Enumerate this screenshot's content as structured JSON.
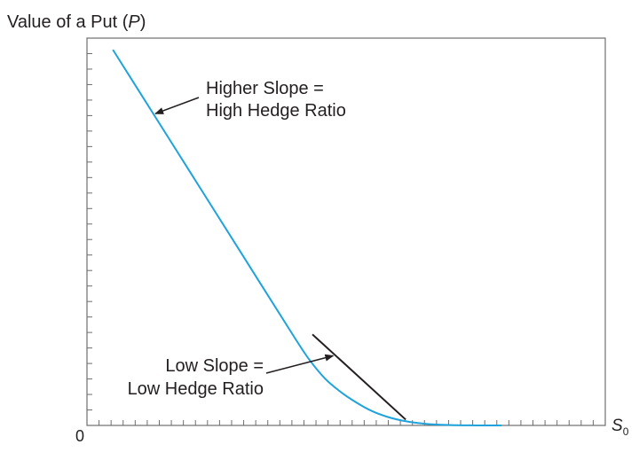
{
  "chart_data": {
    "type": "line",
    "title": "Value of a Put (P)",
    "title_parts": {
      "prefix": "Value of a Put (",
      "var": "P",
      "suffix": ")"
    },
    "xlabel": {
      "base": "S",
      "sub": "0"
    },
    "origin_label": "0",
    "xlim": [
      0,
      100
    ],
    "ylim": [
      0,
      100
    ],
    "grid": false,
    "series": [
      {
        "color": "#1fa3dd",
        "x": [
          5,
          10,
          20,
          30,
          40,
          43,
          46,
          49,
          52,
          55,
          58,
          61,
          64,
          67,
          70,
          74,
          78,
          80
        ],
        "y": [
          97,
          86.4,
          65.2,
          44.0,
          22.8,
          16.8,
          12.0,
          8.6,
          5.9,
          3.7,
          2.2,
          1.2,
          0.6,
          0.25,
          0.1,
          0.02,
          0.0,
          0.0
        ]
      }
    ],
    "tangent_line": {
      "color": "#231f20",
      "x": [
        43.5,
        61.5
      ],
      "y": [
        23.5,
        1.5
      ]
    },
    "annotations": [
      {
        "lines": [
          "Higher Slope =",
          "High Hedge Ratio"
        ],
        "arrow_to": {
          "x": 13.2,
          "y": 80.5
        }
      },
      {
        "lines": [
          "Low Slope =",
          "Low Hedge Ratio"
        ],
        "arrow_to": {
          "x": 47.5,
          "y": 18
        }
      }
    ],
    "x_ticks": 43,
    "y_ticks": 25
  }
}
